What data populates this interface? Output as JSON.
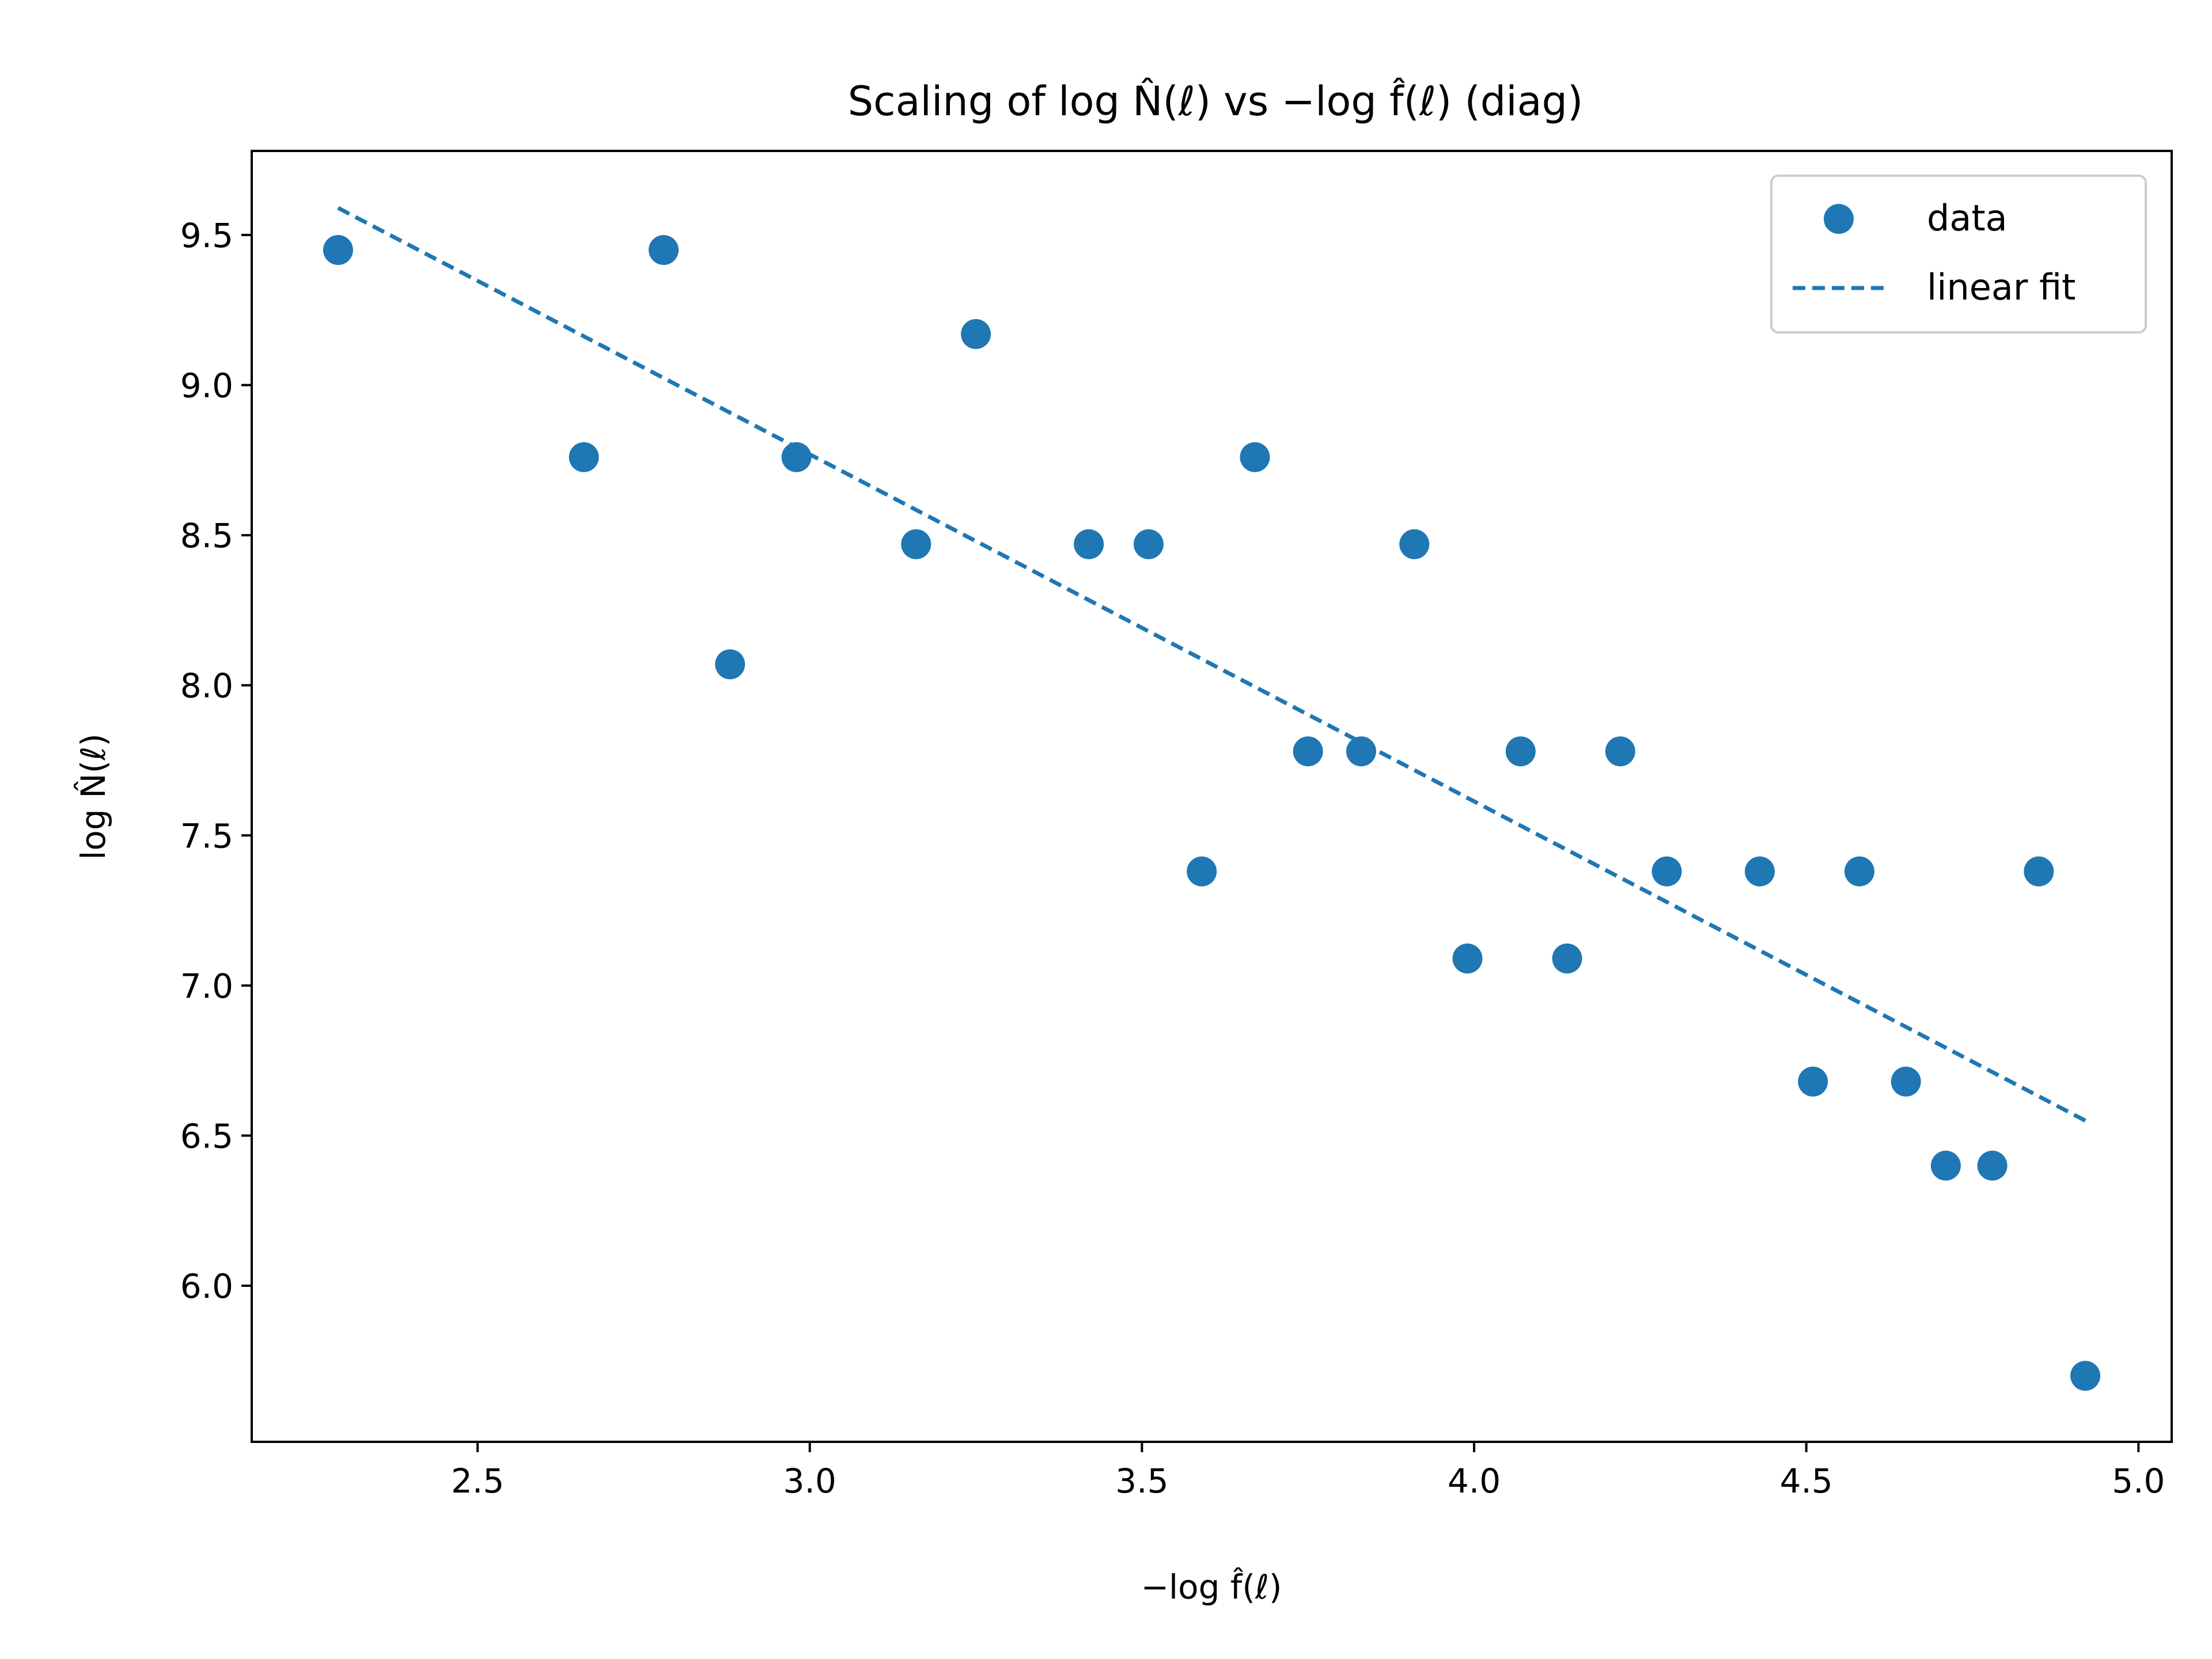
{
  "chart_data": {
    "type": "scatter",
    "title": "Scaling of log N̂(ℓ) vs −log f̂(ℓ) (diag)",
    "xlabel": "−log f̂(ℓ)",
    "ylabel": "log N̂(ℓ)",
    "xlim": [
      2.16,
      5.05
    ],
    "ylim": [
      5.48,
      9.78
    ],
    "xticks": [
      2.5,
      3.0,
      3.5,
      4.0,
      4.5,
      5.0
    ],
    "xtick_labels": [
      "2.5",
      "3.0",
      "3.5",
      "4.0",
      "4.5",
      "5.0"
    ],
    "yticks": [
      6.0,
      6.5,
      7.0,
      7.5,
      8.0,
      8.5,
      9.0,
      9.5
    ],
    "ytick_labels": [
      "6.0",
      "6.5",
      "7.0",
      "7.5",
      "8.0",
      "8.5",
      "9.0",
      "9.5"
    ],
    "grid": false,
    "legend_position": "top-right",
    "color": "#1f77b4",
    "series": [
      {
        "name": "data",
        "kind": "scatter",
        "x": [
          2.29,
          2.66,
          2.78,
          2.88,
          2.98,
          3.16,
          3.25,
          3.42,
          3.51,
          3.59,
          3.67,
          3.75,
          3.83,
          3.91,
          3.99,
          4.07,
          4.14,
          4.22,
          4.29,
          4.43,
          4.51,
          4.58,
          4.65,
          4.71,
          4.78,
          4.85,
          4.92
        ],
        "y": [
          9.45,
          8.76,
          9.45,
          8.07,
          8.76,
          8.47,
          9.17,
          8.47,
          8.47,
          7.38,
          8.76,
          7.78,
          7.78,
          8.47,
          7.09,
          7.78,
          7.09,
          7.78,
          7.38,
          7.38,
          6.68,
          7.38,
          6.68,
          6.4,
          6.4,
          7.38,
          5.7
        ]
      },
      {
        "name": "linear fit",
        "kind": "line",
        "style": "dashed",
        "x": [
          2.29,
          4.92
        ],
        "y": [
          9.59,
          6.55
        ]
      }
    ]
  }
}
